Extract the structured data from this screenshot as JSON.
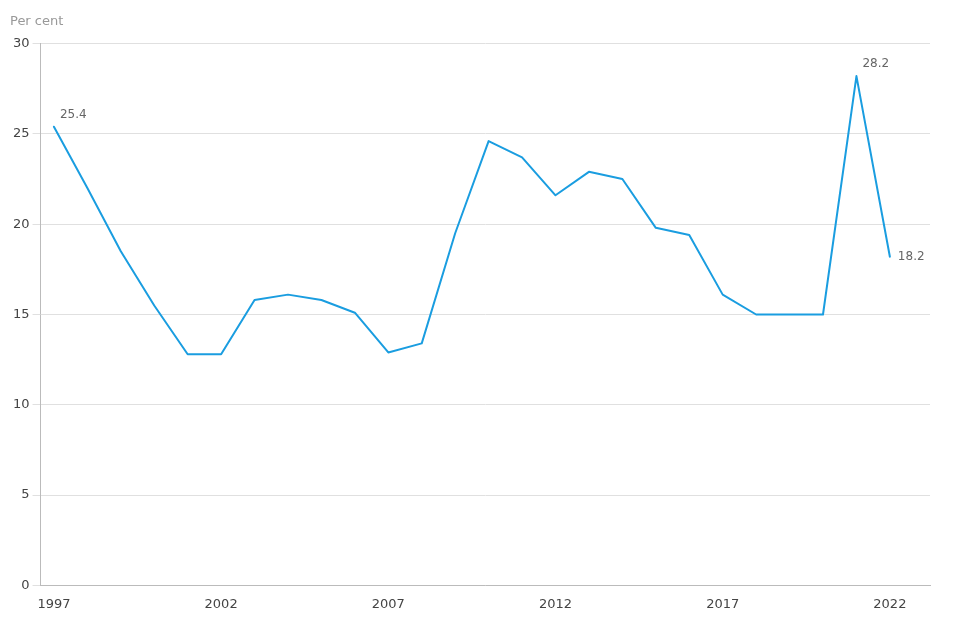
{
  "chart_data": {
    "type": "line",
    "ylabel": "Per cent",
    "x": [
      1997,
      1998,
      1999,
      2000,
      2001,
      2002,
      2003,
      2004,
      2005,
      2006,
      2007,
      2008,
      2009,
      2010,
      2011,
      2012,
      2013,
      2014,
      2015,
      2016,
      2017,
      2018,
      2019,
      2020,
      2021,
      2022
    ],
    "values": [
      25.4,
      22.0,
      18.5,
      15.5,
      12.8,
      12.8,
      15.8,
      16.1,
      15.8,
      15.1,
      12.9,
      13.4,
      19.5,
      24.6,
      23.7,
      21.6,
      22.9,
      22.5,
      19.8,
      19.4,
      16.1,
      15.0,
      15.0,
      15.0,
      28.2,
      18.2
    ],
    "color": "#1a9de0",
    "xlim": [
      1996.6,
      2023.2
    ],
    "xticks": [
      1997,
      2002,
      2007,
      2012,
      2017,
      2022
    ],
    "ylim": [
      0,
      30
    ],
    "yticks": [
      0,
      5,
      10,
      15,
      20,
      25,
      30
    ],
    "grid": "y",
    "annotations": [
      {
        "x": 1997,
        "y": 25.4,
        "text": "25.4"
      },
      {
        "x": 2021,
        "y": 28.2,
        "text": "28.2"
      },
      {
        "x": 2022,
        "y": 18.2,
        "text": "18.2"
      }
    ]
  }
}
